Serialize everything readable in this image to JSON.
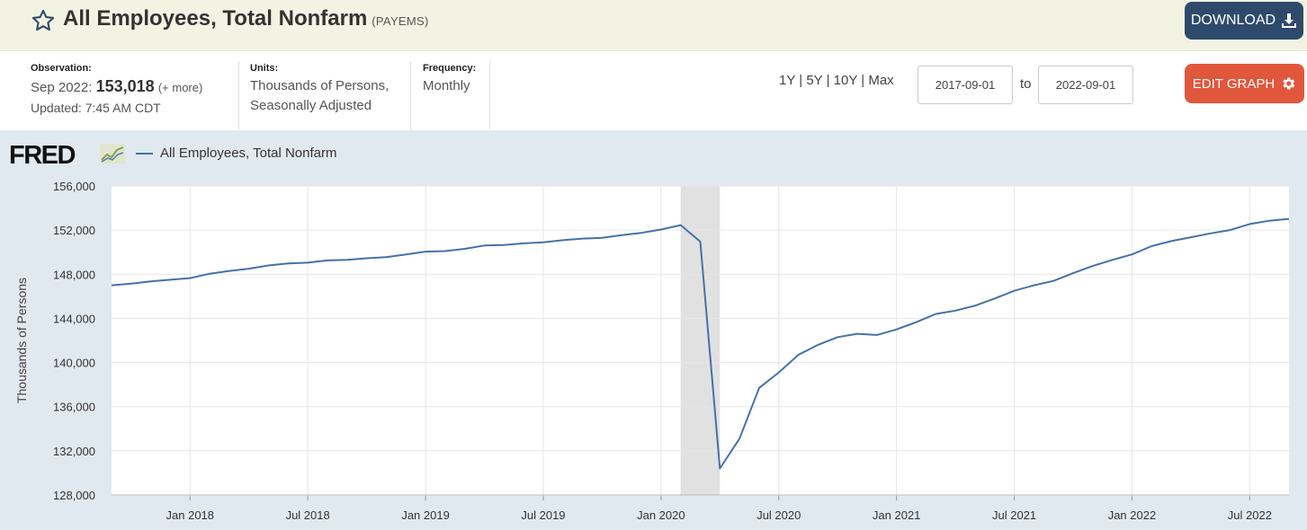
{
  "header": {
    "title": "All Employees, Total Nonfarm",
    "series_code": "(PAYEMS)",
    "download_label": "DOWNLOAD",
    "star_icon": "star-outline-icon",
    "download_icon": "download-icon"
  },
  "meta": {
    "observation_label": "Observation:",
    "observation_period": "Sep 2022:",
    "observation_value": "153,018",
    "observation_more": "(+ more)",
    "updated": "Updated: 7:45 AM CDT",
    "units_label": "Units:",
    "units_line1": "Thousands of Persons,",
    "units_line2": "Seasonally Adjusted",
    "frequency_label": "Frequency:",
    "frequency_value": "Monthly"
  },
  "controls": {
    "range_1y": "1Y",
    "range_5y": "5Y",
    "range_10y": "10Y",
    "range_max": "Max",
    "separator": "|",
    "start_date": "2017-09-01",
    "to_label": "to",
    "end_date": "2022-09-01",
    "edit_graph_label": "EDIT GRAPH",
    "edit_icon": "gear-icon"
  },
  "colors": {
    "series": "#4572a7",
    "recession": "#e1e1e1",
    "download_button": "#2e4a6b",
    "edit_button": "#e0573c",
    "chart_background": "#e1e9f0"
  },
  "chart_data": {
    "type": "line",
    "logo": "FRED",
    "title": "",
    "xlabel": "",
    "ylabel": "Thousands of Persons",
    "ylim": [
      128000,
      156000
    ],
    "y_ticks": [
      "156,000",
      "152,000",
      "148,000",
      "144,000",
      "140,000",
      "136,000",
      "132,000",
      "128,000"
    ],
    "y_tick_values": [
      156000,
      152000,
      148000,
      144000,
      140000,
      136000,
      132000,
      128000
    ],
    "x_ticks": [
      {
        "label": "Jan 2018",
        "date": "2018-01"
      },
      {
        "label": "Jul 2018",
        "date": "2018-07"
      },
      {
        "label": "Jan 2019",
        "date": "2019-01"
      },
      {
        "label": "Jul 2019",
        "date": "2019-07"
      },
      {
        "label": "Jan 2020",
        "date": "2020-01"
      },
      {
        "label": "Jul 2020",
        "date": "2020-07"
      },
      {
        "label": "Jan 2021",
        "date": "2021-01"
      },
      {
        "label": "Jul 2021",
        "date": "2021-07"
      },
      {
        "label": "Jan 2022",
        "date": "2022-01"
      },
      {
        "label": "Jul 2022",
        "date": "2022-07"
      }
    ],
    "xlim": [
      "2017-09",
      "2022-09"
    ],
    "grid": true,
    "legend_position": "top-left",
    "recession": {
      "start": "2020-02",
      "end": "2020-04"
    },
    "series": [
      {
        "name": "All Employees, Total Nonfarm",
        "x": [
          "2017-09",
          "2017-10",
          "2017-11",
          "2017-12",
          "2018-01",
          "2018-02",
          "2018-03",
          "2018-04",
          "2018-05",
          "2018-06",
          "2018-07",
          "2018-08",
          "2018-09",
          "2018-10",
          "2018-11",
          "2018-12",
          "2019-01",
          "2019-02",
          "2019-03",
          "2019-04",
          "2019-05",
          "2019-06",
          "2019-07",
          "2019-08",
          "2019-09",
          "2019-10",
          "2019-11",
          "2019-12",
          "2020-01",
          "2020-02",
          "2020-03",
          "2020-04",
          "2020-05",
          "2020-06",
          "2020-07",
          "2020-08",
          "2020-09",
          "2020-10",
          "2020-11",
          "2020-12",
          "2021-01",
          "2021-02",
          "2021-03",
          "2021-04",
          "2021-05",
          "2021-06",
          "2021-07",
          "2021-08",
          "2021-09",
          "2021-10",
          "2021-11",
          "2021-12",
          "2022-01",
          "2022-02",
          "2022-03",
          "2022-04",
          "2022-05",
          "2022-06",
          "2022-07",
          "2022-08",
          "2022-09"
        ],
        "values": [
          147000,
          147150,
          147350,
          147500,
          147650,
          148050,
          148300,
          148500,
          148800,
          148980,
          149050,
          149250,
          149300,
          149450,
          149550,
          149800,
          150050,
          150100,
          150300,
          150600,
          150650,
          150800,
          150900,
          151080,
          151230,
          151300,
          151550,
          151750,
          152050,
          152450,
          150950,
          130400,
          133100,
          137700,
          139100,
          140700,
          141600,
          142300,
          142600,
          142500,
          143000,
          143650,
          144400,
          144700,
          145150,
          145800,
          146500,
          147000,
          147400,
          148100,
          148750,
          149300,
          149800,
          150550,
          151000,
          151350,
          151700,
          152000,
          152550,
          152850,
          153018
        ]
      }
    ]
  }
}
